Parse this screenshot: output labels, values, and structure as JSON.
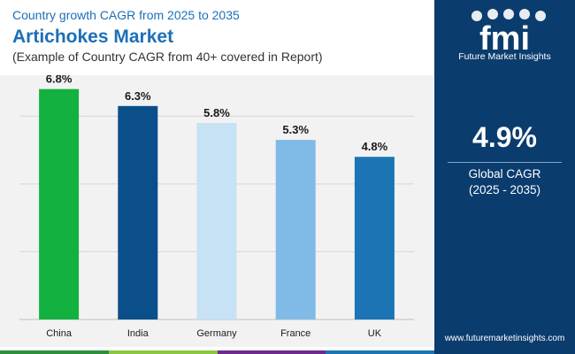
{
  "header": {
    "subtitle": "Country growth CAGR from 2025 to 2035",
    "title": "Artichokes Market",
    "note": "(Example of Country CAGR from 40+ covered in Report)"
  },
  "chart_data": {
    "type": "bar",
    "title": "Artichokes Market",
    "categories": [
      "China",
      "India",
      "Germany",
      "France",
      "UK"
    ],
    "values": [
      6.8,
      6.3,
      5.8,
      5.3,
      4.8
    ],
    "value_labels": [
      "6.8%",
      "6.3%",
      "5.8%",
      "5.3%",
      "4.8%"
    ],
    "colors": [
      "#13b13f",
      "#0b4f8a",
      "#c7e2f4",
      "#7fbbe6",
      "#1b74b4"
    ],
    "ylim": [
      0,
      7
    ],
    "xlabel": "",
    "ylabel": "",
    "grid": true,
    "gridlines": [
      2,
      4,
      6
    ]
  },
  "sidebar": {
    "logo_text": "fmi",
    "logo_caption": "Future Market Insights",
    "kpi_value": "4.9%",
    "kpi_label": "Global CAGR",
    "kpi_period": "(2025 - 2035)",
    "url": "www.futuremarketinsights.com",
    "background": "#0b3c6e"
  },
  "footer": {
    "colors": [
      "#2d8f3a",
      "#8ac640",
      "#6e2a8d",
      "#1b74b4"
    ]
  }
}
